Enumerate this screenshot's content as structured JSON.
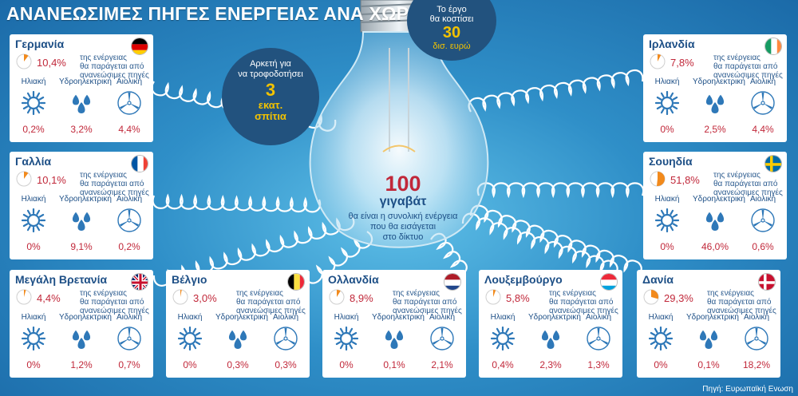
{
  "title": "ΑΝΑΝΕΩΣΙΜΕΣ ΠΗΓΕΣ ΕΝΕΡΓΕΙΑΣ ΑΝΑ ΧΩΡΑ",
  "source": "Πηγή: Ευρωπαϊκή Ενωση",
  "bubble_houses": {
    "line1": "Αρκετή για",
    "line2": "να τροφοδοτήσει",
    "number": "3",
    "line3": "εκατ.",
    "line4": "σπίτια"
  },
  "bubble_cost": {
    "line1": "Το έργο",
    "line2": "θα κοστίσει",
    "number": "30",
    "line3": "δισ. ευρώ"
  },
  "bulb": {
    "number": "100",
    "unit": "γιγαβάτ",
    "line1": "θα είναι η συνολική ενέργεια",
    "line2": "που θα εισάγεται",
    "line3": "στο δίκτυο"
  },
  "desc_line1": "της ενέργειας",
  "desc_line2": "θα παράγεται από",
  "desc_line3": "ανανεώσιμες πηγές",
  "labels": {
    "solar": "Ηλιακή",
    "hydro": "Υδροηλεκτρική",
    "wind": "Αιολική"
  },
  "icons": {
    "solar": "sun-icon",
    "hydro": "water-drops-icon",
    "wind": "wind-turbine-icon"
  },
  "colors": {
    "accent": "#c1283a",
    "pie": "#f28a1c",
    "navy": "#22527e",
    "text_blue": "#1d4f86"
  },
  "countries": [
    {
      "name": "Γερμανία",
      "flag": "germany-flag-icon",
      "share": "10,4%",
      "share_value": 10.4,
      "solar": "0,2%",
      "hydro": "3,2%",
      "wind": "4,4%"
    },
    {
      "name": "Γαλλία",
      "flag": "france-flag-icon",
      "share": "10,1%",
      "share_value": 10.1,
      "solar": "0%",
      "hydro": "9,1%",
      "wind": "0,2%"
    },
    {
      "name": "Μεγάλη Βρετανία",
      "flag": "uk-flag-icon",
      "share": "4,4%",
      "share_value": 4.4,
      "solar": "0%",
      "hydro": "1,2%",
      "wind": "0,7%"
    },
    {
      "name": "Βέλγιο",
      "flag": "belgium-flag-icon",
      "share": "3,0%",
      "share_value": 3.0,
      "solar": "0%",
      "hydro": "0,3%",
      "wind": "0,3%"
    },
    {
      "name": "Ολλανδία",
      "flag": "netherlands-flag-icon",
      "share": "8,9%",
      "share_value": 8.9,
      "solar": "0%",
      "hydro": "0,1%",
      "wind": "2,1%"
    },
    {
      "name": "Λουξεμβούργο",
      "flag": "luxembourg-flag-icon",
      "share": "5,8%",
      "share_value": 5.8,
      "solar": "0,4%",
      "hydro": "2,3%",
      "wind": "1,3%"
    },
    {
      "name": "Δανία",
      "flag": "denmark-flag-icon",
      "share": "29,3%",
      "share_value": 29.3,
      "solar": "0%",
      "hydro": "0,1%",
      "wind": "18,2%"
    },
    {
      "name": "Ιρλανδία",
      "flag": "ireland-flag-icon",
      "share": "7,8%",
      "share_value": 7.8,
      "solar": "0%",
      "hydro": "2,5%",
      "wind": "4,4%"
    },
    {
      "name": "Σουηδία",
      "flag": "sweden-flag-icon",
      "share": "51,8%",
      "share_value": 51.8,
      "solar": "0%",
      "hydro": "46,0%",
      "wind": "0,6%"
    }
  ]
}
